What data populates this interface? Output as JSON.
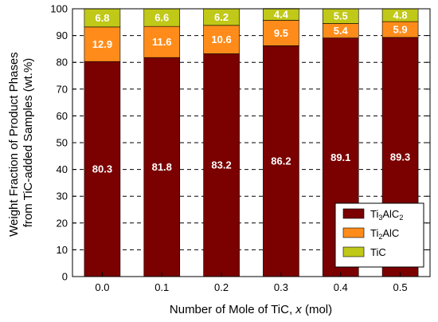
{
  "chart_data": {
    "type": "bar",
    "stacked": true,
    "categories": [
      "0.0",
      "0.1",
      "0.2",
      "0.3",
      "0.4",
      "0.5"
    ],
    "series": [
      {
        "name": "Ti3AlC2",
        "name_main": "Ti",
        "name_sub1": "3",
        "name_mid": "AlC",
        "name_sub2": "2",
        "color": "#7b0000",
        "values": [
          80.3,
          81.8,
          83.2,
          86.2,
          89.1,
          89.3
        ]
      },
      {
        "name": "Ti2AlC",
        "name_main": "Ti",
        "name_sub1": "2",
        "name_mid": "AlC",
        "name_sub2": "",
        "color": "#ff8c1a",
        "values": [
          12.9,
          11.6,
          10.6,
          9.5,
          5.4,
          5.9
        ]
      },
      {
        "name": "TiC",
        "name_main": "TiC",
        "name_sub1": "",
        "name_mid": "",
        "name_sub2": "",
        "color": "#c0c818",
        "values": [
          6.8,
          6.6,
          6.2,
          4.4,
          5.5,
          4.8
        ]
      }
    ],
    "ylabel_line1": "Weight Fraction of Product Phases",
    "ylabel_line2": "from TiC-added Samples (wt.%)",
    "xlabel_prefix": "Number of Mole of TiC, ",
    "xlabel_var": "x",
    "xlabel_suffix": " (mol)",
    "ylim": [
      0,
      100
    ],
    "yticks": [
      0,
      10,
      20,
      30,
      40,
      50,
      60,
      70,
      80,
      90,
      100
    ],
    "grid": "horizontal-dashed",
    "legend_position": "lower-right"
  }
}
